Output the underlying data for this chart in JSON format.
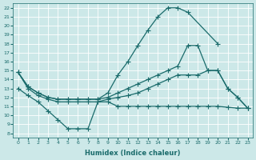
{
  "xlabel": "Humidex (Indice chaleur)",
  "background_color": "#cce8e8",
  "line_color": "#1a6b6b",
  "grid_color": "#b8d8d8",
  "xlim": [
    -0.5,
    23.5
  ],
  "ylim": [
    7.5,
    22.5
  ],
  "xticks": [
    0,
    1,
    2,
    3,
    4,
    5,
    6,
    7,
    8,
    9,
    10,
    11,
    12,
    13,
    14,
    15,
    16,
    17,
    18,
    19,
    20,
    21,
    22,
    23
  ],
  "yticks": [
    8,
    9,
    10,
    11,
    12,
    13,
    14,
    15,
    16,
    17,
    18,
    19,
    20,
    21,
    22
  ],
  "curves": [
    {
      "x": [
        0,
        1,
        2,
        3,
        4,
        5,
        6,
        7,
        8,
        9,
        10,
        11,
        12,
        13,
        14,
        15,
        16,
        17,
        20
      ],
      "y": [
        14.8,
        13.2,
        12.5,
        12.0,
        11.8,
        11.8,
        11.8,
        11.8,
        11.8,
        12.5,
        14.5,
        16.0,
        17.8,
        19.5,
        21.0,
        22.0,
        22.0,
        21.5,
        18.0
      ]
    },
    {
      "x": [
        0,
        1,
        2,
        3,
        4,
        5,
        6,
        7,
        8,
        9,
        10,
        11,
        12,
        13,
        14,
        15,
        16,
        17,
        18,
        19,
        20,
        21,
        22,
        23
      ],
      "y": [
        14.8,
        13.2,
        12.5,
        12.0,
        11.8,
        11.8,
        11.8,
        11.8,
        11.8,
        12.0,
        12.5,
        13.0,
        13.5,
        14.0,
        14.5,
        15.0,
        15.5,
        17.8,
        17.8,
        15.0,
        15.0,
        13.0,
        12.0,
        10.8
      ]
    },
    {
      "x": [
        0,
        1,
        2,
        3,
        4,
        5,
        6,
        7,
        8,
        9,
        10,
        11,
        12,
        13,
        14,
        15,
        16,
        17,
        18,
        19,
        20,
        21,
        22,
        23
      ],
      "y": [
        14.8,
        13.0,
        12.2,
        11.8,
        11.5,
        11.5,
        11.5,
        11.5,
        11.5,
        11.8,
        12.0,
        12.2,
        12.5,
        13.0,
        13.5,
        14.0,
        14.5,
        14.5,
        14.5,
        15.0,
        15.0,
        13.0,
        12.0,
        10.8
      ]
    },
    {
      "x": [
        0,
        1,
        2,
        3,
        4,
        5,
        6,
        7,
        8,
        9,
        10,
        11,
        12,
        13,
        14,
        15,
        16,
        17,
        18,
        19,
        20,
        21,
        22,
        23
      ],
      "y": [
        13.0,
        12.2,
        11.5,
        10.5,
        9.5,
        8.5,
        8.5,
        8.5,
        11.5,
        11.5,
        11.0,
        11.0,
        11.0,
        11.0,
        11.0,
        11.0,
        11.0,
        11.0,
        11.0,
        11.0,
        11.0,
        10.9,
        10.8,
        10.8
      ]
    }
  ]
}
